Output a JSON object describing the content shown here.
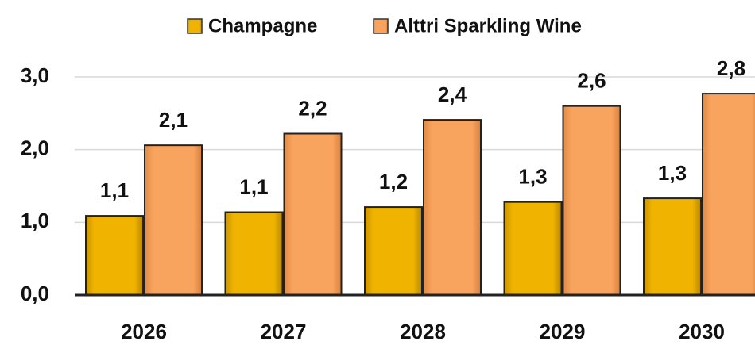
{
  "chart_data": {
    "type": "bar",
    "categories": [
      "2026",
      "2027",
      "2028",
      "2029",
      "2030"
    ],
    "series": [
      {
        "name": "Champagne",
        "color": "#f0b400",
        "values": [
          1.09,
          1.14,
          1.21,
          1.28,
          1.33
        ],
        "value_labels": [
          "1,1",
          "1,1",
          "1,2",
          "1,3",
          "1,3"
        ]
      },
      {
        "name": "Alttri Sparkling Wine",
        "color": "#f8a35e",
        "values": [
          2.06,
          2.22,
          2.41,
          2.6,
          2.77
        ],
        "value_labels": [
          "2,1",
          "2,2",
          "2,4",
          "2,6",
          "2,8"
        ]
      }
    ],
    "ylim": [
      0,
      3
    ],
    "yticks": [
      {
        "value": 0,
        "label": "0,0"
      },
      {
        "value": 1,
        "label": "1,0"
      },
      {
        "value": 2,
        "label": "2,0"
      },
      {
        "value": 3,
        "label": "3,0"
      }
    ],
    "grid": true,
    "legend": "top"
  }
}
